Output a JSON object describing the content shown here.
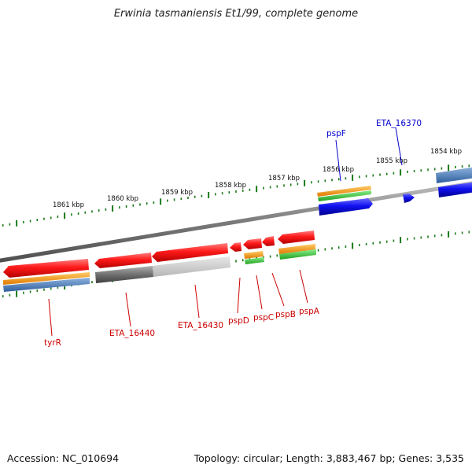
{
  "title": "Erwinia tasmaniensis Et1/99, complete genome",
  "accession": "Accession: NC_010694",
  "summary": "Topology: circular; Length: 3,883,467 bp; Genes: 3,535",
  "colors": {
    "forward_gene": "#1a12e6",
    "reverse_gene": "#e60000",
    "pseudo_gene": "#8a8a8a",
    "orange_track": "#ff9900",
    "green_track": "#33cc33",
    "blue_track": "#4a7fbf",
    "tick": "#1a7a1a",
    "backbone": "#7a7a7a"
  },
  "scale_labels": [
    "1861 kbp",
    "1860 kbp",
    "1859 kbp",
    "1858 kbp",
    "1857 kbp",
    "1856 kbp",
    "1855 kbp",
    "1854 kbp"
  ],
  "genes": [
    {
      "name": "pspF",
      "strand": "forward"
    },
    {
      "name": "ETA_16370",
      "strand": "forward"
    },
    {
      "name": "tyrR",
      "strand": "reverse"
    },
    {
      "name": "ETA_16440",
      "strand": "reverse"
    },
    {
      "name": "ETA_16430",
      "strand": "reverse"
    },
    {
      "name": "pspD",
      "strand": "reverse"
    },
    {
      "name": "pspC",
      "strand": "reverse"
    },
    {
      "name": "pspB",
      "strand": "reverse"
    },
    {
      "name": "pspA",
      "strand": "reverse"
    }
  ]
}
